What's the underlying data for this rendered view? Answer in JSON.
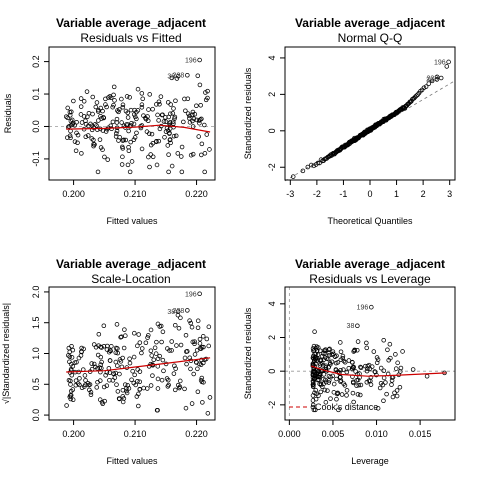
{
  "chart_data": [
    {
      "type": "scatter",
      "title": "Variable average_adjacent",
      "subtitle": "Residuals vs Fitted",
      "xlabel": "Fitted values",
      "ylabel": "Residuals",
      "xlim": [
        0.196,
        0.223
      ],
      "ylim": [
        -0.165,
        0.245
      ],
      "xticks": [
        "0.200",
        "0.210",
        "0.220"
      ],
      "xtick_values": [
        0.2,
        0.21,
        0.22
      ],
      "yticks": [
        "-0.1",
        "0.0",
        "0.1",
        "0.2"
      ],
      "ytick_values": [
        -0.1,
        0.0,
        0.1,
        0.2
      ],
      "reference_line_y": 0,
      "smooth_line": [
        [
          0.1988,
          -0.008
        ],
        [
          0.205,
          -0.006
        ],
        [
          0.21,
          -0.002
        ],
        [
          0.214,
          0.004
        ],
        [
          0.218,
          -0.003
        ],
        [
          0.2222,
          -0.017
        ]
      ],
      "labeled_points": [
        {
          "label": "196",
          "x": 0.2205,
          "y": 0.205
        },
        {
          "label": "228",
          "x": 0.2185,
          "y": 0.158
        },
        {
          "label": "38",
          "x": 0.217,
          "y": 0.155
        }
      ],
      "n_points": 260,
      "x_range_points": [
        0.1988,
        0.2222
      ],
      "residual_sd": 0.055
    },
    {
      "type": "scatter",
      "title": "Variable average_adjacent",
      "subtitle": "Normal Q-Q",
      "xlabel": "Theoretical Quantiles",
      "ylabel": "Standardized residuals",
      "xlim": [
        -3.2,
        3.2
      ],
      "ylim": [
        -2.7,
        4.6
      ],
      "xticks": [
        "-3",
        "-2",
        "-1",
        "0",
        "1",
        "2",
        "3"
      ],
      "xtick_values": [
        -3,
        -2,
        -1,
        0,
        1,
        2,
        3
      ],
      "yticks": [
        "-2",
        "0",
        "2",
        "4"
      ],
      "ytick_values": [
        -2,
        0,
        2,
        4
      ],
      "reference_line": [
        [
          -3.2,
          -2.75
        ],
        [
          3.2,
          2.75
        ]
      ],
      "labeled_points": [
        {
          "label": "196",
          "x": 2.96,
          "y": 3.78
        },
        {
          "label": "228",
          "x": 2.68,
          "y": 2.9
        },
        {
          "label": "38",
          "x": 2.52,
          "y": 2.82
        }
      ],
      "n_points": 260
    },
    {
      "type": "scatter",
      "title": "Variable average_adjacent",
      "subtitle": "Scale-Location",
      "xlabel": "Fitted values",
      "ylabel": "√|Standardized residuals|",
      "xlim": [
        0.196,
        0.223
      ],
      "ylim": [
        -0.08,
        2.08
      ],
      "xticks": [
        "0.200",
        "0.210",
        "0.220"
      ],
      "xtick_values": [
        0.2,
        0.21,
        0.22
      ],
      "yticks": [
        "0.0",
        "0.5",
        "1.0",
        "1.5",
        "2.0"
      ],
      "ytick_values": [
        0,
        0.5,
        1.0,
        1.5,
        2.0
      ],
      "smooth_line": [
        [
          0.1988,
          0.7
        ],
        [
          0.205,
          0.72
        ],
        [
          0.21,
          0.78
        ],
        [
          0.215,
          0.84
        ],
        [
          0.2222,
          0.93
        ]
      ],
      "labeled_points": [
        {
          "label": "196",
          "x": 0.2205,
          "y": 1.97
        },
        {
          "label": "228",
          "x": 0.2185,
          "y": 1.7
        },
        {
          "label": "38",
          "x": 0.217,
          "y": 1.68
        }
      ],
      "n_points": 260
    },
    {
      "type": "scatter",
      "title": "Variable average_adjacent",
      "subtitle": "Residuals vs Leverage",
      "xlabel": "Leverage",
      "ylabel": "Standardized residuals",
      "xlim": [
        -0.0005,
        0.019
      ],
      "ylim": [
        -2.9,
        5.0
      ],
      "xticks": [
        "0.000",
        "0.005",
        "0.010",
        "0.015"
      ],
      "xtick_values": [
        0,
        0.005,
        0.01,
        0.015
      ],
      "yticks": [
        "-2",
        "0",
        "2",
        "4"
      ],
      "ytick_values": [
        -2,
        0,
        2,
        4
      ],
      "reference_line_y": 0,
      "reference_line_x": 0,
      "smooth_line": [
        [
          0.0025,
          0.3
        ],
        [
          0.004,
          0.05
        ],
        [
          0.006,
          -0.2
        ],
        [
          0.009,
          -0.3
        ],
        [
          0.012,
          -0.25
        ],
        [
          0.018,
          -0.1
        ]
      ],
      "labeled_points": [
        {
          "label": "196",
          "x": 0.0094,
          "y": 3.8
        },
        {
          "label": "38",
          "x": 0.0078,
          "y": 2.7
        }
      ],
      "legend": {
        "label": "Cook's distance",
        "position": "bottom-left"
      },
      "n_points": 260
    }
  ]
}
